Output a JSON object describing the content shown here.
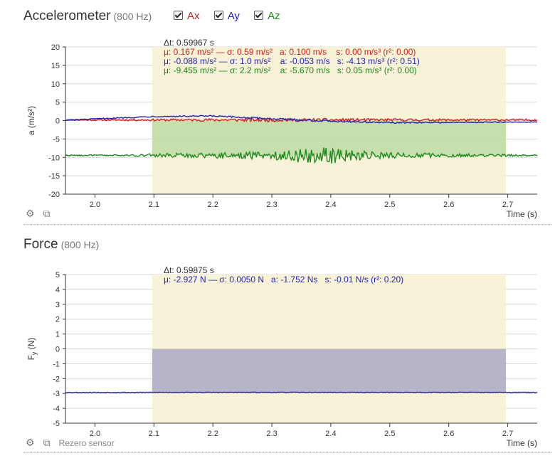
{
  "accel": {
    "title": "Accelerometer",
    "rate": "(800 Hz)",
    "legend": [
      {
        "label": "Ax",
        "color": "#c81e1e",
        "checked": true
      },
      {
        "label": "Ay",
        "color": "#2323b4",
        "checked": true
      },
      {
        "label": "Az",
        "color": "#1a8a1a",
        "checked": true
      }
    ],
    "stats": {
      "dt": "Δt: 0.59967 s",
      "lines": [
        {
          "text": "μ: 0.167 m/s² — σ: 0.59 m/s²   a: 0.100 m/s    s: 0.00 m/s³ (r²: 0.00)",
          "color": "#c81e1e"
        },
        {
          "text": "μ: -0.088 m/s² — σ: 1.0 m/s²    a: -0.053 m/s   s: -4.13 m/s³ (r²: 0.51)",
          "color": "#2323b4"
        },
        {
          "text": "μ: -9.455 m/s² — σ: 2.2 m/s²    a: -5.670 m/s   s: 0.05 m/s³ (r²: 0.00)",
          "color": "#1a8a1a"
        }
      ]
    }
  },
  "force": {
    "title": "Force",
    "rate": "(800 Hz)",
    "stats": {
      "dt": "Δt: 0.59875 s",
      "lines": [
        {
          "text": "μ: -2.927 N — σ: 0.0050 N   a: -1.752 Ns   s: -0.01 N/s (r²: 0.20)",
          "color": "#2323b4"
        }
      ]
    },
    "rezero_label": "Rezero sensor"
  },
  "icons": {
    "settings": "gear-icon",
    "export": "external-link-icon"
  },
  "chart_data": [
    {
      "type": "line",
      "title": "Accelerometer",
      "xlabel": "Time (s)",
      "ylabel": "a (m/s²)",
      "xlim": [
        1.95,
        2.75
      ],
      "ylim": [
        -20,
        20
      ],
      "xticks": [
        2.0,
        2.1,
        2.2,
        2.3,
        2.4,
        2.5,
        2.6,
        2.7
      ],
      "yticks": [
        20,
        15,
        10,
        5,
        0,
        -5,
        -10,
        -15,
        -20
      ],
      "grid": true,
      "selection": [
        2.097,
        2.697
      ],
      "series": [
        {
          "name": "Ax",
          "color": "#c81e1e",
          "mean": 0.167,
          "noise": 0.59,
          "envelope": [
            [
              1.95,
              0.3
            ],
            [
              2.1,
              0.45
            ],
            [
              2.3,
              0.8
            ],
            [
              2.5,
              0.6
            ],
            [
              2.75,
              0.4
            ]
          ],
          "trend": [
            [
              1.95,
              0
            ],
            [
              2.75,
              0
            ]
          ]
        },
        {
          "name": "Ay",
          "color": "#2323b4",
          "mean": -0.088,
          "noise": 0.35,
          "envelope": [
            [
              1.95,
              0.3
            ],
            [
              2.2,
              0.6
            ],
            [
              2.35,
              0.8
            ],
            [
              2.5,
              0.5
            ],
            [
              2.75,
              0.3
            ]
          ],
          "trend": [
            [
              1.95,
              0.2
            ],
            [
              2.1,
              1.2
            ],
            [
              2.2,
              1.3
            ],
            [
              2.35,
              0.2
            ],
            [
              2.5,
              -0.5
            ],
            [
              2.75,
              -0.3
            ]
          ]
        },
        {
          "name": "Az",
          "color": "#1a8a1a",
          "mean": -9.455,
          "noise": 0.5,
          "envelope": [
            [
              1.95,
              0.3
            ],
            [
              2.05,
              0.4
            ],
            [
              2.1,
              1.0
            ],
            [
              2.2,
              1.5
            ],
            [
              2.3,
              2.2
            ],
            [
              2.35,
              4.0
            ],
            [
              2.4,
              4.5
            ],
            [
              2.45,
              2.5
            ],
            [
              2.5,
              1.6
            ],
            [
              2.6,
              1.0
            ],
            [
              2.7,
              0.6
            ],
            [
              2.75,
              0.4
            ]
          ],
          "trend": [
            [
              1.95,
              0
            ],
            [
              2.75,
              0
            ]
          ]
        }
      ]
    },
    {
      "type": "line",
      "title": "Force",
      "xlabel": "Time (s)",
      "ylabel": "F_y (N)",
      "xlim": [
        1.95,
        2.75
      ],
      "ylim": [
        -5,
        5
      ],
      "xticks": [
        2.0,
        2.1,
        2.2,
        2.3,
        2.4,
        2.5,
        2.6,
        2.7
      ],
      "yticks": [
        5,
        4,
        3,
        2,
        1,
        0,
        -1,
        -2,
        -3,
        -4,
        -5
      ],
      "grid": true,
      "selection": [
        2.097,
        2.697
      ],
      "series": [
        {
          "name": "Fy",
          "color": "#2323b4",
          "mean": -2.927,
          "noise": 0.02,
          "envelope": [
            [
              1.95,
              1
            ],
            [
              2.75,
              1
            ]
          ],
          "trend": [
            [
              1.95,
              0
            ],
            [
              2.75,
              0
            ]
          ]
        }
      ]
    }
  ]
}
